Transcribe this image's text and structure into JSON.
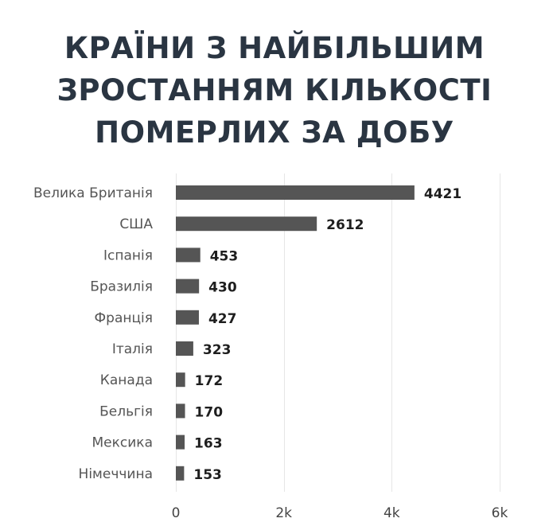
{
  "title": {
    "line1": "КРАЇНИ З НАЙБІЛЬШИМ",
    "line2": "ЗРОСТАННЯМ КІЛЬКОСТІ",
    "line3": "ПОМЕРЛИХ ЗА ДОБУ"
  },
  "colors": {
    "bar": "#555555",
    "title": "#2a3542",
    "grid": "#e6e6e6"
  },
  "chart_data": {
    "type": "bar",
    "orientation": "horizontal",
    "title": "КРАЇНИ З НАЙБІЛЬШИМ ЗРОСТАННЯМ КІЛЬКОСТІ ПОМЕРЛИХ ЗА ДОБУ",
    "categories": [
      "Велика Британія",
      "США",
      "Іспанія",
      "Бразилія",
      "Франція",
      "Італія",
      "Канада",
      "Бельгія",
      "Мексика",
      "Німеччина"
    ],
    "values": [
      4421,
      2612,
      453,
      430,
      427,
      323,
      172,
      170,
      163,
      153
    ],
    "xlim": [
      0,
      6000
    ],
    "xticks": [
      0,
      2000,
      4000,
      6000
    ],
    "xtick_labels": [
      "0",
      "2k",
      "4k",
      "6k"
    ],
    "grid": true,
    "xlabel": "",
    "ylabel": ""
  }
}
